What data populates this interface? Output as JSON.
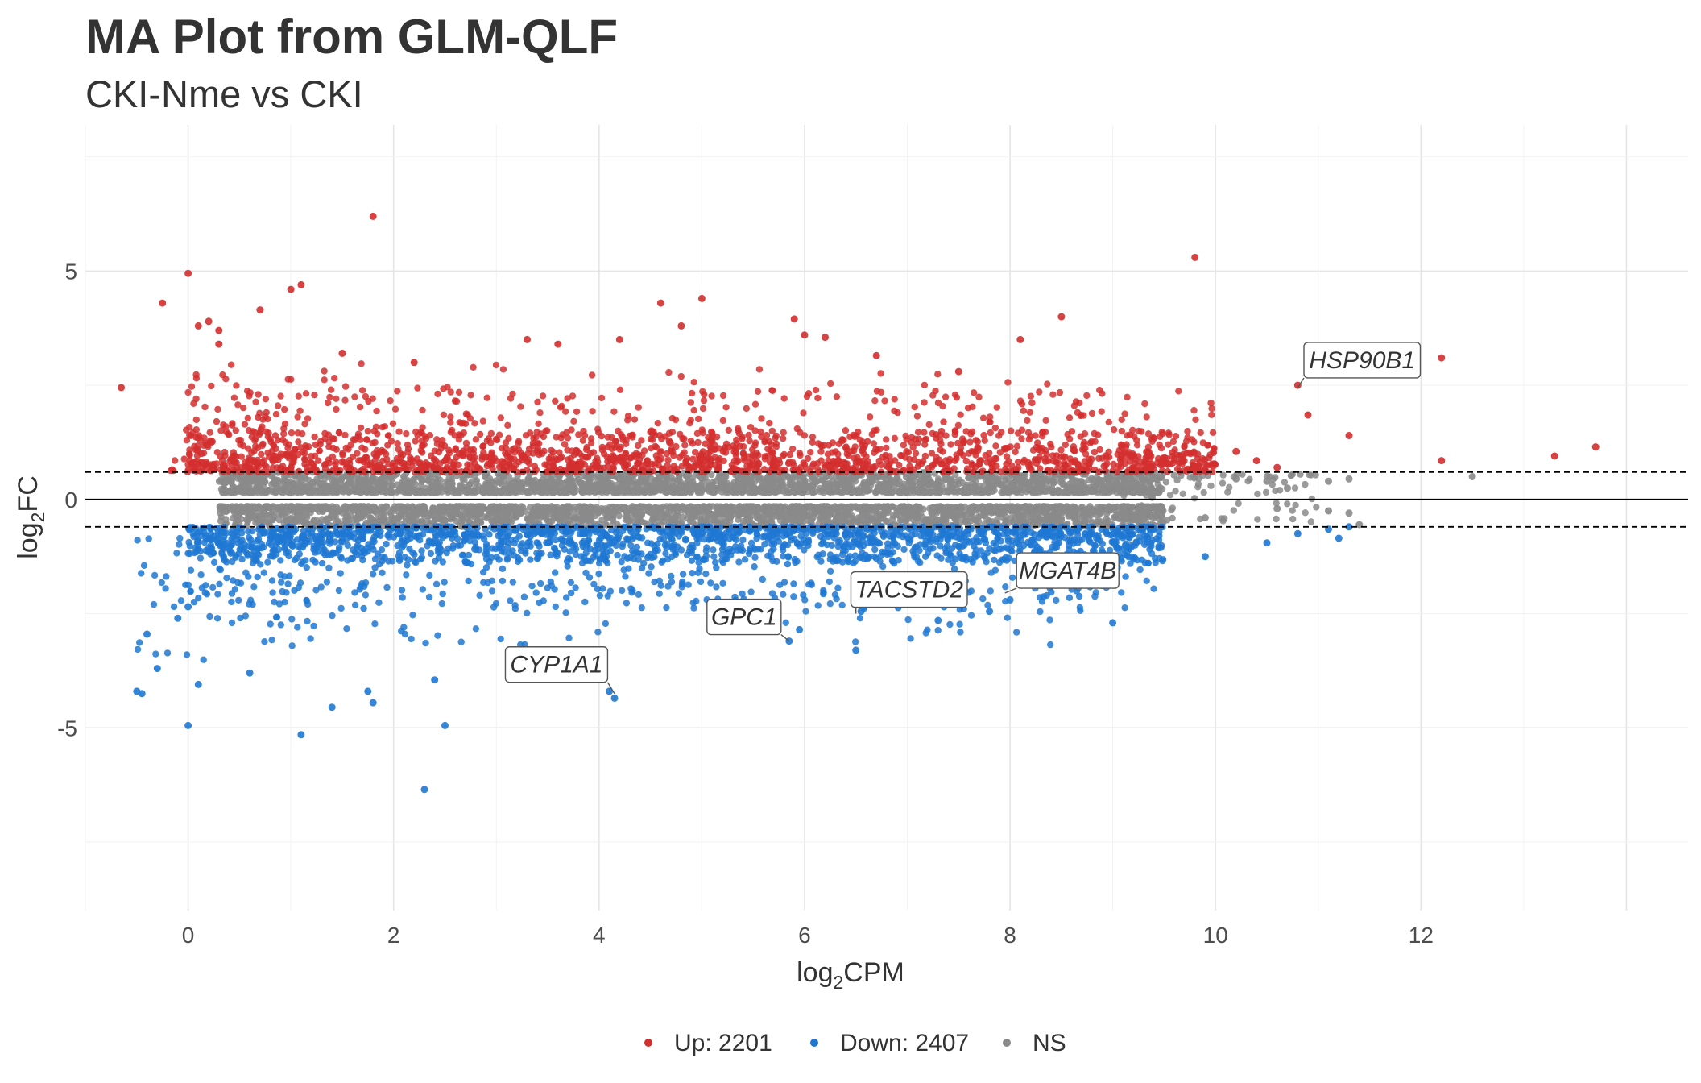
{
  "chart_data": {
    "type": "scatter",
    "title": "MA Plot from GLM-QLF",
    "subtitle": "CKI-Nme vs CKI",
    "xlabel": {
      "base": "log",
      "sub": "2",
      "rest": "CPM"
    },
    "ylabel": {
      "base": "log",
      "sub": "2",
      "rest": "FC"
    },
    "xlim": [
      -1.0,
      14.6
    ],
    "ylim": [
      -9.0,
      8.2
    ],
    "x_ticks": [
      0,
      2,
      4,
      6,
      8,
      10,
      12
    ],
    "y_ticks": [
      -5,
      0,
      5
    ],
    "grid": true,
    "legend_position": "bottom",
    "fc_threshold_lines": [
      0.6,
      -0.6
    ],
    "zero_line": 0,
    "colors": {
      "up": "#d32f2f",
      "down": "#1e78d2",
      "ns": "#8a8a8a"
    },
    "legend": [
      {
        "key": "up",
        "label": "Up: 2201",
        "color": "#d32f2f"
      },
      {
        "key": "down",
        "label": "Down: 2407",
        "color": "#1e78d2"
      },
      {
        "key": "ns",
        "label": "NS",
        "color": "#8a8a8a"
      }
    ],
    "series": [
      {
        "key": "up",
        "count": 2201,
        "points": [
          [
            -0.65,
            2.45
          ],
          [
            -0.25,
            4.3
          ],
          [
            0.0,
            4.95
          ],
          [
            0.1,
            3.8
          ],
          [
            0.2,
            3.9
          ],
          [
            0.3,
            3.7
          ],
          [
            0.3,
            3.4
          ],
          [
            0.7,
            4.15
          ],
          [
            1.0,
            4.6
          ],
          [
            1.1,
            4.7
          ],
          [
            1.8,
            6.2
          ],
          [
            1.5,
            3.2
          ],
          [
            2.2,
            3.0
          ],
          [
            3.3,
            3.5
          ],
          [
            3.6,
            3.4
          ],
          [
            4.2,
            3.5
          ],
          [
            4.6,
            4.3
          ],
          [
            5.0,
            4.4
          ],
          [
            4.8,
            3.8
          ],
          [
            5.9,
            3.95
          ],
          [
            6.0,
            3.6
          ],
          [
            6.2,
            3.55
          ],
          [
            6.7,
            3.15
          ],
          [
            7.5,
            2.8
          ],
          [
            8.1,
            3.5
          ],
          [
            8.5,
            4.0
          ],
          [
            9.8,
            5.3
          ],
          [
            10.8,
            2.5
          ],
          [
            10.9,
            1.85
          ],
          [
            11.3,
            1.4
          ],
          [
            12.2,
            3.1
          ],
          [
            12.2,
            0.85
          ],
          [
            13.3,
            0.95
          ],
          [
            13.7,
            1.15
          ],
          [
            10.2,
            1.05
          ],
          [
            10.4,
            0.85
          ],
          [
            10.6,
            0.7
          ]
        ],
        "density": [
          {
            "x": [
              0.0,
              10.0
            ],
            "y": [
              0.6,
              1.5
            ],
            "n": 1300
          },
          {
            "x": [
              0.0,
              10.0
            ],
            "y": [
              0.75,
              2.4
            ],
            "n": 400
          },
          {
            "x": [
              0.0,
              9.5
            ],
            "y": [
              1.5,
              3.0
            ],
            "n": 110
          },
          {
            "x": [
              -0.2,
              1.0
            ],
            "y": [
              0.6,
              2.8
            ],
            "n": 60
          }
        ]
      },
      {
        "key": "down",
        "count": 2407,
        "points": [
          [
            -0.5,
            -4.2
          ],
          [
            -0.45,
            -4.25
          ],
          [
            0.0,
            -4.95
          ],
          [
            0.1,
            -4.05
          ],
          [
            0.6,
            -3.8
          ],
          [
            1.1,
            -5.15
          ],
          [
            1.4,
            -4.55
          ],
          [
            1.75,
            -4.2
          ],
          [
            1.8,
            -4.45
          ],
          [
            2.3,
            -6.35
          ],
          [
            2.4,
            -3.95
          ],
          [
            2.5,
            -4.95
          ],
          [
            4.1,
            -4.2
          ],
          [
            4.15,
            -4.35
          ],
          [
            5.85,
            -3.1
          ],
          [
            5.95,
            -2.85
          ],
          [
            6.5,
            -3.3
          ],
          [
            6.55,
            -2.45
          ],
          [
            7.3,
            -2.65
          ],
          [
            7.8,
            -2.45
          ],
          [
            8.0,
            -2.2
          ],
          [
            9.0,
            -2.7
          ],
          [
            9.0,
            -1.7
          ],
          [
            9.9,
            -1.25
          ],
          [
            10.5,
            -0.95
          ],
          [
            10.8,
            -0.75
          ],
          [
            11.2,
            -0.85
          ],
          [
            11.3,
            -0.6
          ],
          [
            11.1,
            -0.65
          ],
          [
            -0.4,
            -2.95
          ],
          [
            -0.3,
            -3.7
          ],
          [
            -0.1,
            -2.6
          ],
          [
            0.0,
            -2.35
          ]
        ],
        "density": [
          {
            "x": [
              0.0,
              9.5
            ],
            "y": [
              -1.4,
              -0.6
            ],
            "n": 1400
          },
          {
            "x": [
              0.0,
              9.5
            ],
            "y": [
              -2.4,
              -0.75
            ],
            "n": 450
          },
          {
            "x": [
              0.0,
              8.8
            ],
            "y": [
              -3.2,
              -1.8
            ],
            "n": 140
          },
          {
            "x": [
              -0.5,
              1.2
            ],
            "y": [
              -3.6,
              -0.8
            ],
            "n": 70
          }
        ]
      },
      {
        "key": "ns",
        "count_shown": false,
        "points": [
          [
            10.2,
            0.45
          ],
          [
            10.5,
            0.4
          ],
          [
            10.7,
            0.25
          ],
          [
            11.1,
            0.4
          ],
          [
            11.3,
            0.45
          ],
          [
            12.5,
            0.5
          ],
          [
            10.6,
            -0.2
          ],
          [
            11.1,
            -0.25
          ],
          [
            11.3,
            -0.3
          ],
          [
            11.4,
            -0.55
          ],
          [
            9.8,
            0.5
          ],
          [
            9.9,
            -0.4
          ]
        ],
        "density": [
          {
            "x": [
              0.3,
              9.5
            ],
            "y": [
              0.15,
              0.6
            ],
            "n": 2200
          },
          {
            "x": [
              0.3,
              9.5
            ],
            "y": [
              -0.6,
              -0.15
            ],
            "n": 2200
          },
          {
            "x": [
              9.0,
              11.0
            ],
            "y": [
              -0.5,
              0.55
            ],
            "n": 90
          }
        ]
      }
    ],
    "annotations": [
      {
        "label": "HSP90B1",
        "x": 10.8,
        "y": 2.45
      },
      {
        "label": "MGAT4B",
        "x": 7.95,
        "y": -2.05
      },
      {
        "label": "TACSTD2",
        "x": 6.5,
        "y": -2.5
      },
      {
        "label": "GPC1",
        "x": 5.85,
        "y": -3.1
      },
      {
        "label": "CYP1A1",
        "x": 4.15,
        "y": -4.25
      }
    ]
  }
}
